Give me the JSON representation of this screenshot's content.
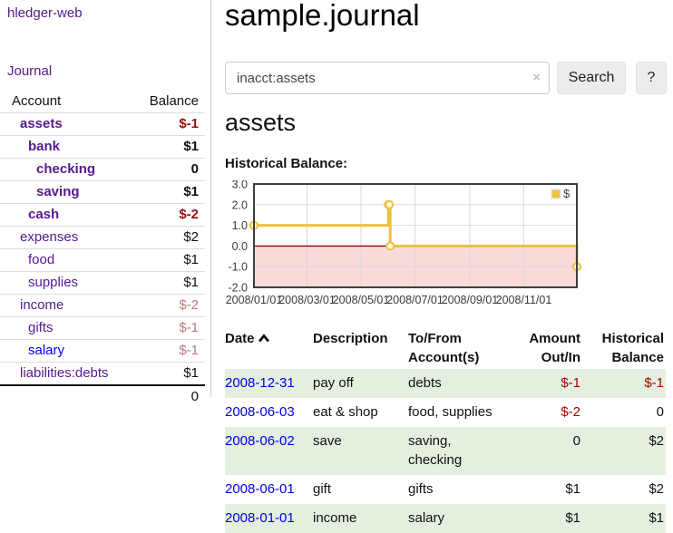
{
  "app": {
    "brand": "hledger-web",
    "nav_journal": "Journal"
  },
  "sidebar": {
    "header": {
      "account": "Account",
      "balance": "Balance"
    },
    "accounts": [
      {
        "name": "assets",
        "balance": "$-1",
        "level": 1,
        "bold": true,
        "neg": "strong"
      },
      {
        "name": "bank",
        "balance": "$1",
        "level": 2,
        "bold": true,
        "neg": null
      },
      {
        "name": "checking",
        "balance": "0",
        "level": 3,
        "bold": true,
        "neg": null
      },
      {
        "name": "saving",
        "balance": "$1",
        "level": 3,
        "bold": true,
        "neg": null
      },
      {
        "name": "cash",
        "balance": "$-2",
        "level": 2,
        "bold": true,
        "neg": "strong"
      },
      {
        "name": "expenses",
        "balance": "$2",
        "level": 1,
        "bold": false,
        "neg": null
      },
      {
        "name": "food",
        "balance": "$1",
        "level": 2,
        "bold": false,
        "neg": null
      },
      {
        "name": "supplies",
        "balance": "$1",
        "level": 2,
        "bold": false,
        "neg": null
      },
      {
        "name": "income",
        "balance": "$-2",
        "level": 1,
        "bold": false,
        "neg": "muted"
      },
      {
        "name": "gifts",
        "balance": "$-1",
        "level": 2,
        "bold": false,
        "neg": "muted"
      },
      {
        "name": "salary",
        "balance": "$-1",
        "level": 2,
        "bold": false,
        "neg": "muted",
        "unvisited": true
      },
      {
        "name": "liabilities:debts",
        "balance": "$1",
        "level": 1,
        "bold": false,
        "neg": null
      }
    ],
    "total": "0"
  },
  "header": {
    "title": "sample.journal"
  },
  "search": {
    "value": "inacct:assets",
    "clear_icon": "×",
    "button_label": "Search",
    "help_label": "?"
  },
  "account_page": {
    "heading": "assets",
    "chart_label": "Historical Balance:"
  },
  "chart_data": {
    "type": "line",
    "step": true,
    "title": "Historical Balance",
    "series": [
      {
        "name": "$",
        "color": "#EDC240",
        "points": [
          [
            "2008-01-01",
            1
          ],
          [
            "2008-06-01",
            2
          ],
          [
            "2008-06-02",
            2
          ],
          [
            "2008-06-03",
            0
          ],
          [
            "2008-12-31",
            -1
          ]
        ]
      }
    ],
    "xlim": [
      "2008-01-01",
      "2008-12-31"
    ],
    "ylim": [
      -2,
      3
    ],
    "yticks": [
      3.0,
      2.0,
      1.0,
      0.0,
      -1.0,
      -2.0
    ],
    "xticks": [
      "2008/01/01",
      "2008/03/01",
      "2008/05/01",
      "2008/07/01",
      "2008/09/01",
      "2008/11/01"
    ],
    "legend": {
      "label": "$",
      "position": "top-right"
    },
    "grid": true,
    "negative_region_color": "#fbdada",
    "zero_line_color": "#8b0000",
    "frame_color": "#3f3f3f"
  },
  "table": {
    "columns": [
      {
        "label": "Date",
        "sorted": "asc"
      },
      {
        "label": "Description"
      },
      {
        "label": "To/From Account(s)"
      },
      {
        "label": "Amount Out/In",
        "align": "right"
      },
      {
        "label": "Historical Balance",
        "align": "right"
      }
    ],
    "rows": [
      {
        "date": "2008-12-31",
        "description": "pay off",
        "accounts": "debts",
        "amount": "$-1",
        "amount_neg": true,
        "balance": "$-1",
        "balance_neg": true
      },
      {
        "date": "2008-06-03",
        "description": "eat & shop",
        "accounts": "food, supplies",
        "amount": "$-2",
        "amount_neg": true,
        "balance": "0",
        "balance_neg": false
      },
      {
        "date": "2008-06-02",
        "description": "save",
        "accounts": "saving, checking",
        "amount": "0",
        "amount_neg": false,
        "balance": "$2",
        "balance_neg": false
      },
      {
        "date": "2008-06-01",
        "description": "gift",
        "accounts": "gifts",
        "amount": "$1",
        "amount_neg": false,
        "balance": "$2",
        "balance_neg": false
      },
      {
        "date": "2008-01-01",
        "description": "income",
        "accounts": "salary",
        "amount": "$1",
        "amount_neg": false,
        "balance": "$1",
        "balance_neg": false
      }
    ]
  }
}
